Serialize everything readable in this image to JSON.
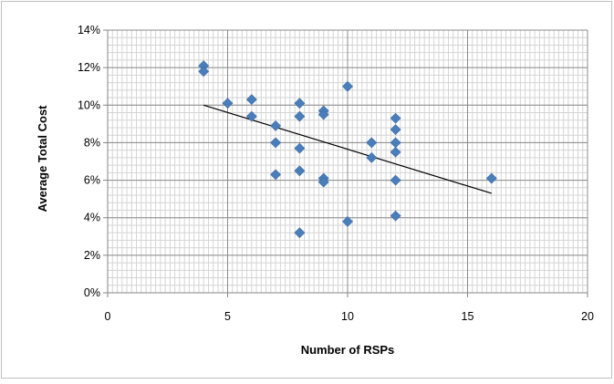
{
  "chart_data": {
    "type": "scatter",
    "title": "",
    "xlabel": "Number of RSPs",
    "ylabel": "Average Total Cost",
    "xlim": [
      0,
      20
    ],
    "ylim": [
      0,
      0.14
    ],
    "x_ticks": [
      0,
      5,
      10,
      15,
      20
    ],
    "x_tick_labels": [
      "0",
      "5",
      "10",
      "15",
      "20"
    ],
    "y_ticks": [
      0,
      0.02,
      0.04,
      0.06,
      0.08,
      0.1,
      0.12,
      0.14
    ],
    "y_tick_labels": [
      "0%",
      "2%",
      "4%",
      "6%",
      "8%",
      "10%",
      "12%",
      "14%"
    ],
    "grid": true,
    "legend": "none",
    "marker": "diamond",
    "marker_color": "#4a7ebb",
    "trendline": {
      "type": "linear",
      "x": [
        4,
        16
      ],
      "y": [
        0.1,
        0.053
      ],
      "color": "#000000"
    },
    "series": [
      {
        "points": [
          [
            4,
            0.121
          ],
          [
            4,
            0.118
          ],
          [
            5,
            0.101
          ],
          [
            6,
            0.103
          ],
          [
            6,
            0.094
          ],
          [
            7,
            0.089
          ],
          [
            7,
            0.08
          ],
          [
            7,
            0.063
          ],
          [
            8,
            0.101
          ],
          [
            8,
            0.094
          ],
          [
            8,
            0.077
          ],
          [
            8,
            0.065
          ],
          [
            8,
            0.032
          ],
          [
            9,
            0.097
          ],
          [
            9,
            0.095
          ],
          [
            9,
            0.061
          ],
          [
            9,
            0.059
          ],
          [
            10,
            0.11
          ],
          [
            10,
            0.038
          ],
          [
            11,
            0.08
          ],
          [
            11,
            0.072
          ],
          [
            12,
            0.093
          ],
          [
            12,
            0.087
          ],
          [
            12,
            0.08
          ],
          [
            12,
            0.075
          ],
          [
            12,
            0.06
          ],
          [
            12,
            0.041
          ],
          [
            16,
            0.061
          ]
        ]
      }
    ]
  }
}
